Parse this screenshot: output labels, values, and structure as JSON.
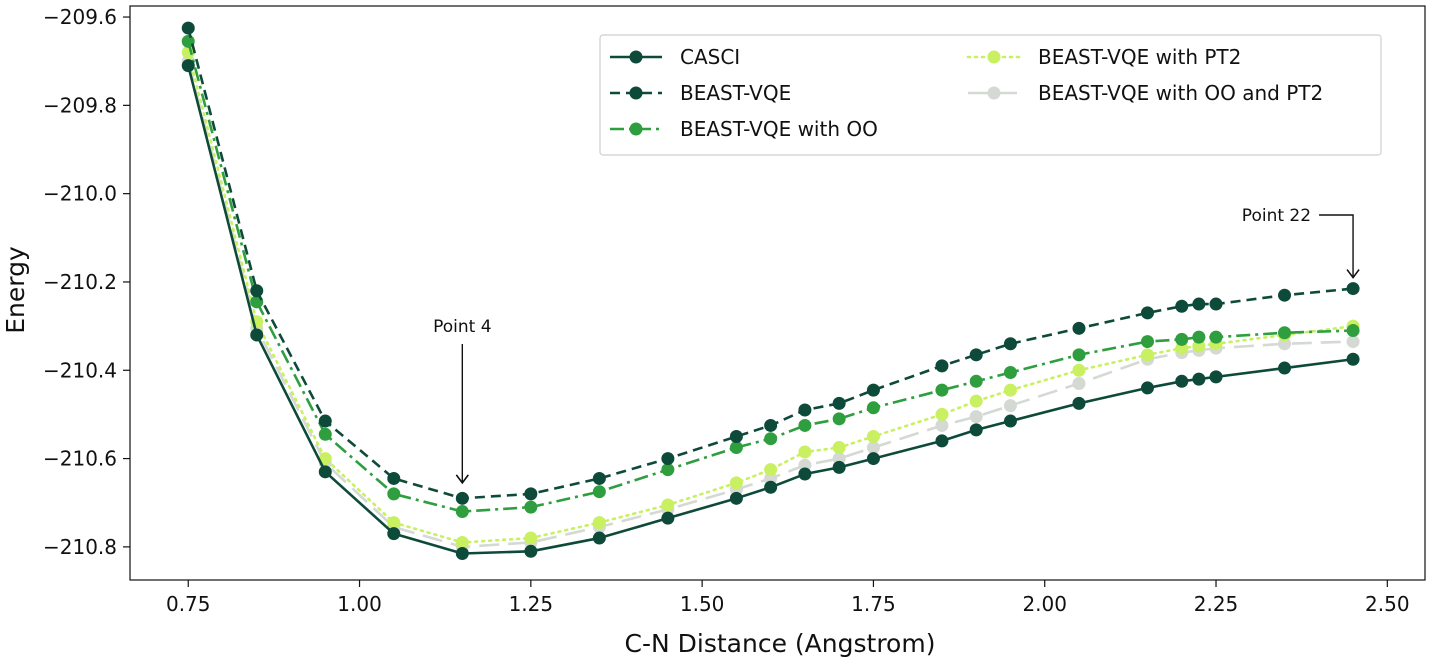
{
  "chart_data": {
    "type": "line",
    "title": "",
    "xlabel": "C-N Distance (Angstrom)",
    "ylabel": "Energy",
    "xlim": [
      0.665,
      2.555
    ],
    "ylim": [
      -210.875,
      -209.575
    ],
    "xticks": [
      0.75,
      1.0,
      1.25,
      1.5,
      1.75,
      2.0,
      2.25,
      2.5
    ],
    "xtick_labels": [
      "0.75",
      "1.00",
      "1.25",
      "1.50",
      "1.75",
      "2.00",
      "2.25",
      "2.50"
    ],
    "yticks": [
      -209.6,
      -209.8,
      -210.0,
      -210.2,
      -210.4,
      -210.6,
      -210.8
    ],
    "ytick_labels": [
      "−209.6",
      "−209.8",
      "−210.0",
      "−210.2",
      "−210.4",
      "−210.6",
      "−210.8"
    ],
    "grid": false,
    "legend_position": "upper-right",
    "x": [
      0.75,
      0.85,
      0.95,
      1.05,
      1.15,
      1.25,
      1.35,
      1.45,
      1.55,
      1.6,
      1.65,
      1.7,
      1.75,
      1.85,
      1.9,
      1.95,
      2.05,
      2.15,
      2.2,
      2.225,
      2.25,
      2.35,
      2.45
    ],
    "series": [
      {
        "name": "CASCI",
        "color": "#0e4a3a",
        "dash": "solid",
        "values": [
          -209.71,
          -210.32,
          -210.63,
          -210.77,
          -210.815,
          -210.81,
          -210.78,
          -210.735,
          -210.69,
          -210.665,
          -210.635,
          -210.62,
          -210.6,
          -210.56,
          -210.535,
          -210.515,
          -210.475,
          -210.44,
          -210.425,
          -210.42,
          -210.415,
          -210.395,
          -210.375
        ]
      },
      {
        "name": "BEAST-VQE",
        "color": "#0e4a3a",
        "dash": "dashed",
        "values": [
          -209.625,
          -210.22,
          -210.515,
          -210.645,
          -210.69,
          -210.68,
          -210.645,
          -210.6,
          -210.55,
          -210.525,
          -210.49,
          -210.475,
          -210.445,
          -210.39,
          -210.365,
          -210.34,
          -210.305,
          -210.27,
          -210.255,
          -210.25,
          -210.25,
          -210.23,
          -210.215
        ]
      },
      {
        "name": "BEAST-VQE with OO",
        "color": "#2e9e3e",
        "dash": "dashdot",
        "values": [
          -209.655,
          -210.245,
          -210.545,
          -210.68,
          -210.72,
          -210.71,
          -210.675,
          -210.625,
          -210.575,
          -210.555,
          -210.525,
          -210.51,
          -210.485,
          -210.445,
          -210.425,
          -210.405,
          -210.365,
          -210.335,
          -210.33,
          -210.325,
          -210.325,
          -210.315,
          -210.31
        ]
      },
      {
        "name": "BEAST-VQE with PT2",
        "color": "#c8f060",
        "dash": "dotted",
        "values": [
          -209.68,
          -210.29,
          -210.6,
          -210.745,
          -210.79,
          -210.78,
          -210.745,
          -210.705,
          -210.655,
          -210.625,
          -210.585,
          -210.575,
          -210.55,
          -210.5,
          -210.47,
          -210.445,
          -210.4,
          -210.365,
          -210.35,
          -210.345,
          -210.34,
          -210.32,
          -210.3
        ]
      },
      {
        "name": "BEAST-VQE with OO and PT2",
        "color": "#d4d9d4",
        "dash": "longdash",
        "values": [
          -209.7,
          -210.305,
          -210.61,
          -210.755,
          -210.8,
          -210.79,
          -210.755,
          -210.715,
          -210.67,
          -210.645,
          -210.615,
          -210.6,
          -210.575,
          -210.525,
          -210.505,
          -210.48,
          -210.43,
          -210.375,
          -210.36,
          -210.355,
          -210.35,
          -210.34,
          -210.335
        ]
      }
    ],
    "annotations": [
      {
        "text": "Point 4",
        "target_x": 1.15,
        "target_y": -210.655
      },
      {
        "text": "Point 22",
        "target_x": 2.45,
        "target_y": -210.19
      }
    ]
  }
}
